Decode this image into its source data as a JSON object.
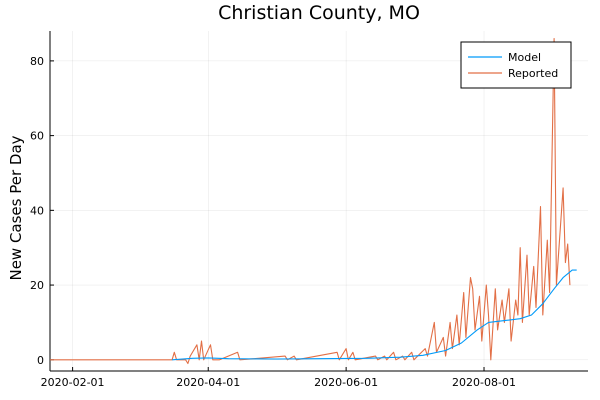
{
  "chart_data": {
    "type": "line",
    "title": "Christian County, MO",
    "xlabel": "",
    "ylabel": "New Cases Per Day",
    "x_axis_type": "date",
    "xlim": [
      "2020-01-22",
      "2020-09-16"
    ],
    "ylim": [
      -3,
      88
    ],
    "x_ticks": [
      "2020-02-01",
      "2020-04-01",
      "2020-06-01",
      "2020-08-01"
    ],
    "y_ticks": [
      0,
      20,
      40,
      60,
      80
    ],
    "grid": true,
    "legend_position": "top-right",
    "series": [
      {
        "name": "Model",
        "color": "#009af9",
        "points": [
          [
            "2020-03-16",
            0
          ],
          [
            "2020-03-25",
            0.4
          ],
          [
            "2020-04-01",
            0.5
          ],
          [
            "2020-04-10",
            0.3
          ],
          [
            "2020-05-01",
            0.2
          ],
          [
            "2020-05-20",
            0.3
          ],
          [
            "2020-06-10",
            0.4
          ],
          [
            "2020-06-25",
            0.7
          ],
          [
            "2020-07-05",
            1.2
          ],
          [
            "2020-07-15",
            2.5
          ],
          [
            "2020-07-22",
            4.5
          ],
          [
            "2020-07-29",
            8
          ],
          [
            "2020-08-03",
            10
          ],
          [
            "2020-08-10",
            10.5
          ],
          [
            "2020-08-17",
            11
          ],
          [
            "2020-08-22",
            12
          ],
          [
            "2020-08-27",
            15
          ],
          [
            "2020-09-01",
            19
          ],
          [
            "2020-09-05",
            22
          ],
          [
            "2020-09-09",
            24
          ],
          [
            "2020-09-11",
            24
          ]
        ]
      },
      {
        "name": "Reported",
        "color": "#e26f46",
        "points": [
          [
            "2020-01-22",
            0
          ],
          [
            "2020-03-16",
            0
          ],
          [
            "2020-03-17",
            2
          ],
          [
            "2020-03-18",
            0
          ],
          [
            "2020-03-22",
            0
          ],
          [
            "2020-03-23",
            -1
          ],
          [
            "2020-03-24",
            1
          ],
          [
            "2020-03-27",
            4
          ],
          [
            "2020-03-28",
            0
          ],
          [
            "2020-03-29",
            5
          ],
          [
            "2020-03-30",
            0
          ],
          [
            "2020-04-02",
            4
          ],
          [
            "2020-04-03",
            0
          ],
          [
            "2020-04-05",
            0
          ],
          [
            "2020-04-06",
            0
          ],
          [
            "2020-04-14",
            2
          ],
          [
            "2020-04-15",
            0
          ],
          [
            "2020-05-05",
            1
          ],
          [
            "2020-05-06",
            0
          ],
          [
            "2020-05-09",
            1
          ],
          [
            "2020-05-10",
            0
          ],
          [
            "2020-05-28",
            2
          ],
          [
            "2020-05-29",
            0
          ],
          [
            "2020-06-01",
            3
          ],
          [
            "2020-06-02",
            0
          ],
          [
            "2020-06-04",
            2
          ],
          [
            "2020-06-05",
            0
          ],
          [
            "2020-06-14",
            1
          ],
          [
            "2020-06-15",
            0
          ],
          [
            "2020-06-18",
            1
          ],
          [
            "2020-06-19",
            0
          ],
          [
            "2020-06-22",
            2
          ],
          [
            "2020-06-23",
            0
          ],
          [
            "2020-06-26",
            1
          ],
          [
            "2020-06-27",
            0
          ],
          [
            "2020-06-30",
            2
          ],
          [
            "2020-07-01",
            0
          ],
          [
            "2020-07-06",
            3
          ],
          [
            "2020-07-07",
            1
          ],
          [
            "2020-07-10",
            10
          ],
          [
            "2020-07-11",
            2
          ],
          [
            "2020-07-14",
            6
          ],
          [
            "2020-07-15",
            1
          ],
          [
            "2020-07-17",
            10
          ],
          [
            "2020-07-18",
            3
          ],
          [
            "2020-07-20",
            12
          ],
          [
            "2020-07-21",
            4
          ],
          [
            "2020-07-23",
            18
          ],
          [
            "2020-07-24",
            6
          ],
          [
            "2020-07-26",
            22
          ],
          [
            "2020-07-27",
            19
          ],
          [
            "2020-07-28",
            8
          ],
          [
            "2020-07-30",
            17
          ],
          [
            "2020-07-31",
            5
          ],
          [
            "2020-08-02",
            20
          ],
          [
            "2020-08-03",
            12
          ],
          [
            "2020-08-04",
            0
          ],
          [
            "2020-08-06",
            19
          ],
          [
            "2020-08-07",
            8
          ],
          [
            "2020-08-09",
            16
          ],
          [
            "2020-08-10",
            10
          ],
          [
            "2020-08-12",
            19
          ],
          [
            "2020-08-13",
            5
          ],
          [
            "2020-08-15",
            16
          ],
          [
            "2020-08-16",
            12
          ],
          [
            "2020-08-17",
            30
          ],
          [
            "2020-08-18",
            10
          ],
          [
            "2020-08-20",
            28
          ],
          [
            "2020-08-21",
            12
          ],
          [
            "2020-08-23",
            25
          ],
          [
            "2020-08-24",
            14
          ],
          [
            "2020-08-26",
            41
          ],
          [
            "2020-08-27",
            12
          ],
          [
            "2020-08-29",
            32
          ],
          [
            "2020-08-30",
            18
          ],
          [
            "2020-09-01",
            86
          ],
          [
            "2020-09-02",
            20
          ],
          [
            "2020-09-05",
            46
          ],
          [
            "2020-09-06",
            26
          ],
          [
            "2020-09-07",
            31
          ],
          [
            "2020-09-08",
            20
          ]
        ]
      }
    ]
  }
}
